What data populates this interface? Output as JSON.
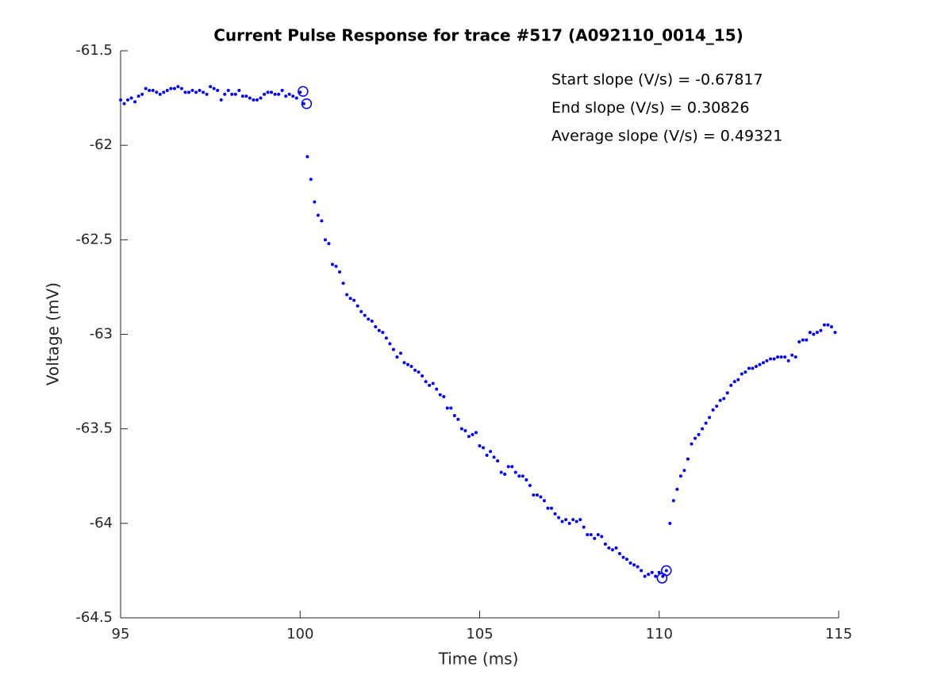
{
  "chart_data": {
    "type": "scatter",
    "title": "Current Pulse Response for trace #517 (A092110_0014_15)",
    "x_label": "Time (ms)",
    "y_label": "Voltage (mV)",
    "annotations": [
      "Start slope (V/s) = -0.67817",
      "End slope (V/s) = 0.30826",
      "Average slope (V/s) = 0.49321"
    ],
    "xlim": [
      95,
      115
    ],
    "xticks": [
      95,
      100,
      105,
      110,
      115
    ],
    "ylim": [
      -64.5,
      -61.5
    ],
    "yticks": [
      -64.5,
      -64,
      -63.5,
      -63,
      -62.5,
      -62,
      -61.5
    ],
    "series": [
      {
        "color": "#0000ff",
        "marker": "dot",
        "x": [
          95,
          95.1,
          95.2,
          95.3,
          95.4,
          95.5,
          95.6,
          95.7,
          95.8,
          95.9,
          96,
          96.1,
          96.2,
          96.3,
          96.4,
          96.5,
          96.6,
          96.7,
          96.8,
          96.9,
          97,
          97.1,
          97.2,
          97.3,
          97.4,
          97.5,
          97.6,
          97.7,
          97.8,
          97.9,
          98,
          98.1,
          98.2,
          98.3,
          98.4,
          98.5,
          98.6,
          98.7,
          98.8,
          98.9,
          99,
          99.1,
          99.2,
          99.3,
          99.4,
          99.5,
          99.6,
          99.7,
          99.8,
          99.9,
          100,
          100.1,
          100.2,
          100.3,
          100.4,
          100.5,
          100.6,
          100.7,
          100.8,
          100.9,
          101,
          101.1,
          101.2,
          101.3,
          101.4,
          101.5,
          101.6,
          101.7,
          101.8,
          101.9,
          102,
          102.1,
          102.2,
          102.3,
          102.4,
          102.5,
          102.6,
          102.7,
          102.8,
          102.9,
          103,
          103.1,
          103.2,
          103.3,
          103.4,
          103.5,
          103.6,
          103.7,
          103.8,
          103.9,
          104,
          104.1,
          104.2,
          104.3,
          104.4,
          104.5,
          104.6,
          104.7,
          104.8,
          104.9,
          105,
          105.1,
          105.2,
          105.3,
          105.4,
          105.5,
          105.6,
          105.7,
          105.8,
          105.9,
          106,
          106.1,
          106.2,
          106.3,
          106.4,
          106.5,
          106.6,
          106.7,
          106.8,
          106.9,
          107,
          107.1,
          107.2,
          107.3,
          107.4,
          107.5,
          107.6,
          107.7,
          107.8,
          107.9,
          108,
          108.1,
          108.2,
          108.3,
          108.4,
          108.5,
          108.6,
          108.7,
          108.8,
          108.9,
          109,
          109.1,
          109.2,
          109.3,
          109.4,
          109.5,
          109.6,
          109.7,
          109.8,
          109.9,
          110,
          110.1,
          110.2,
          110.3,
          110.4,
          110.5,
          110.6,
          110.7,
          110.8,
          110.9,
          111,
          111.1,
          111.2,
          111.3,
          111.4,
          111.5,
          111.6,
          111.7,
          111.8,
          111.9,
          112,
          112.1,
          112.2,
          112.3,
          112.4,
          112.5,
          112.6,
          112.7,
          112.8,
          112.9,
          113,
          113.1,
          113.2,
          113.3,
          113.4,
          113.5,
          113.6,
          113.7,
          113.8,
          113.9,
          114,
          114.1,
          114.2,
          114.3,
          114.4,
          114.5,
          114.6,
          114.7,
          114.8,
          114.9
        ],
        "values": [
          -61.76,
          -61.78,
          -61.76,
          -61.75,
          -61.77,
          -61.74,
          -61.73,
          -61.7,
          -61.71,
          -61.71,
          -61.72,
          -61.73,
          -61.72,
          -61.71,
          -61.7,
          -61.7,
          -61.69,
          -61.7,
          -61.72,
          -61.72,
          -61.71,
          -61.72,
          -61.71,
          -61.72,
          -61.73,
          -61.69,
          -61.7,
          -61.71,
          -61.76,
          -61.73,
          -61.71,
          -61.73,
          -61.73,
          -61.71,
          -61.74,
          -61.74,
          -61.75,
          -61.76,
          -61.76,
          -61.75,
          -61.73,
          -61.72,
          -61.72,
          -61.73,
          -61.73,
          -61.71,
          -61.74,
          -61.73,
          -61.74,
          -61.75,
          -61.72,
          -61.78,
          -62.06,
          -62.18,
          -62.3,
          -62.37,
          -62.4,
          -62.5,
          -62.52,
          -62.63,
          -62.64,
          -62.67,
          -62.73,
          -62.79,
          -62.81,
          -62.82,
          -62.85,
          -62.88,
          -62.9,
          -62.92,
          -62.93,
          -62.96,
          -62.98,
          -62.99,
          -63.02,
          -63.05,
          -63.08,
          -63.12,
          -63.1,
          -63.15,
          -63.16,
          -63.17,
          -63.19,
          -63.2,
          -63.22,
          -63.25,
          -63.27,
          -63.26,
          -63.29,
          -63.32,
          -63.33,
          -63.39,
          -63.39,
          -63.43,
          -63.45,
          -63.5,
          -63.51,
          -63.54,
          -63.53,
          -63.52,
          -63.59,
          -63.6,
          -63.64,
          -63.62,
          -63.65,
          -63.67,
          -63.73,
          -63.74,
          -63.7,
          -63.7,
          -63.73,
          -63.75,
          -63.75,
          -63.77,
          -63.8,
          -63.85,
          -63.85,
          -63.86,
          -63.88,
          -63.92,
          -63.92,
          -63.95,
          -63.97,
          -63.99,
          -63.98,
          -64.0,
          -63.98,
          -63.99,
          -63.98,
          -64.02,
          -64.06,
          -64.06,
          -64.08,
          -64.06,
          -64.07,
          -64.11,
          -64.13,
          -64.14,
          -64.13,
          -64.16,
          -64.18,
          -64.19,
          -64.21,
          -64.22,
          -64.23,
          -64.25,
          -64.28,
          -64.27,
          -64.26,
          -64.28,
          -64.26,
          -64.28,
          -64.25,
          -64.0,
          -63.88,
          -63.82,
          -63.75,
          -63.72,
          -63.66,
          -63.58,
          -63.55,
          -63.53,
          -63.5,
          -63.47,
          -63.44,
          -63.4,
          -63.38,
          -63.35,
          -63.34,
          -63.31,
          -63.27,
          -63.25,
          -63.24,
          -63.21,
          -63.2,
          -63.18,
          -63.18,
          -63.17,
          -63.16,
          -63.15,
          -63.14,
          -63.13,
          -63.13,
          -63.12,
          -63.12,
          -63.12,
          -63.14,
          -63.11,
          -63.12,
          -63.04,
          -63.03,
          -63.03,
          -62.99,
          -63.0,
          -62.99,
          -62.98,
          -62.95,
          -62.95,
          -62.96,
          -62.99
        ]
      },
      {
        "color": "#0000ff",
        "marker": "circle",
        "x": [
          100.08,
          100.18,
          110.08,
          110.2
        ],
        "values": [
          -61.715,
          -61.78,
          -64.29,
          -64.25
        ]
      }
    ]
  }
}
